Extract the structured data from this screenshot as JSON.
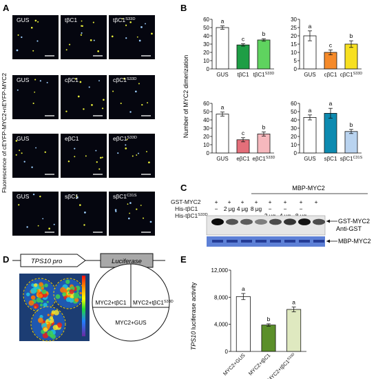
{
  "panel_letters": [
    "A",
    "B",
    "C",
    "D",
    "E"
  ],
  "panel_a": {
    "side_label": "Fluorescence of cEYFP-MYC2+nEYFP-MYC2",
    "rows": [
      {
        "labels": [
          "GUS",
          "tβC1",
          "tβC1S33D"
        ]
      },
      {
        "labels": [
          "GUS",
          "cβC1",
          "cβC1S33D"
        ]
      },
      {
        "labels": [
          "GUS",
          "eβC1",
          "eβC1S33D"
        ]
      },
      {
        "labels": [
          "GUS",
          "sβC1",
          "sβC1C31S"
        ]
      }
    ]
  },
  "panel_b": {
    "ylabel": "Number of MYC2 dimerization",
    "charts": [
      {
        "type": "bar",
        "categories": [
          "GUS",
          "tβC1",
          "tβC1S33D"
        ],
        "values": [
          50,
          29,
          35
        ],
        "errors": [
          2,
          1.5,
          1.5
        ],
        "letters": [
          "a",
          "c",
          "b"
        ],
        "colors": [
          "#ffffff",
          "#1e9e45",
          "#5fd35f"
        ],
        "ylim": [
          0,
          60
        ],
        "yticks": [
          "0",
          "10",
          "20",
          "30",
          "40",
          "50",
          "60"
        ]
      },
      {
        "type": "bar",
        "categories": [
          "GUS",
          "cβC1",
          "cβC1S33D"
        ],
        "values": [
          20,
          10,
          15
        ],
        "errors": [
          3,
          1.5,
          2
        ],
        "letters": [
          "a",
          "c",
          "b"
        ],
        "colors": [
          "#ffffff",
          "#f58a2a",
          "#f7e021"
        ],
        "ylim": [
          0,
          30
        ],
        "yticks": [
          "0",
          "5",
          "10",
          "15",
          "20",
          "25",
          "30"
        ]
      },
      {
        "type": "bar",
        "categories": [
          "GUS",
          "eβC1",
          "eβC1S33D"
        ],
        "values": [
          47,
          16,
          23
        ],
        "errors": [
          2.5,
          2.5,
          2.5
        ],
        "letters": [
          "a",
          "c",
          "b"
        ],
        "colors": [
          "#ffffff",
          "#e46f7a",
          "#f6b8bd"
        ],
        "ylim": [
          0,
          60
        ],
        "yticks": [
          "0",
          "10",
          "20",
          "30",
          "40",
          "50",
          "60"
        ]
      },
      {
        "type": "bar",
        "categories": [
          "GUS",
          "sβC1",
          "sβC1C31S"
        ],
        "values": [
          43,
          48,
          26
        ],
        "errors": [
          3,
          6,
          2.5
        ],
        "letters": [
          "a",
          "a",
          "b"
        ],
        "colors": [
          "#ffffff",
          "#0d8ab0",
          "#b9d3ef"
        ],
        "ylim": [
          0,
          60
        ],
        "yticks": [
          "0",
          "10",
          "20",
          "30",
          "40",
          "50",
          "60"
        ]
      }
    ]
  },
  "panel_c": {
    "title": "MBP-MYC2",
    "rows": [
      {
        "label": "GST-MYC2",
        "cells": [
          "+",
          "+",
          "+",
          "+",
          "+",
          "+",
          "+",
          "+"
        ]
      },
      {
        "label": "His-tβC1",
        "cells": [
          "−",
          "2 μg",
          "4 μg",
          "8 μg",
          "−",
          "−",
          "−",
          "−"
        ]
      },
      {
        "label": "His-tβC1S33D",
        "cells": [
          "−",
          "−",
          "−",
          "−",
          "2 μg",
          "4 μg",
          "8 μg",
          "−"
        ]
      }
    ],
    "band_labels": {
      "gst": "GST-MYC2",
      "anti": "Anti-GST",
      "mbp": "MBP-MYC2"
    }
  },
  "panel_d": {
    "construct_promoter": "TPS10 pro",
    "construct_reporter": "Luciferase",
    "sectors": [
      "MYC2+tβC1",
      "MYC2+tβC1S33D",
      "MYC2+GUS"
    ]
  },
  "panel_e": {
    "chart_data": {
      "type": "bar",
      "categories": [
        "MYC2+GUS",
        "MYC2+tβC1",
        "MYC2+tβC1S33D"
      ],
      "values": [
        8100,
        3900,
        6200
      ],
      "errors": [
        450,
        180,
        350
      ],
      "letters": [
        "a",
        "b",
        "a"
      ],
      "colors": [
        "#ffffff",
        "#5b8f2a",
        "#dfe9c0"
      ],
      "ylabel": "TPS10 luciferase activity",
      "ylim": [
        0,
        12000
      ],
      "yticks": [
        "0",
        "4,000",
        "8,000",
        "12,000"
      ]
    }
  }
}
